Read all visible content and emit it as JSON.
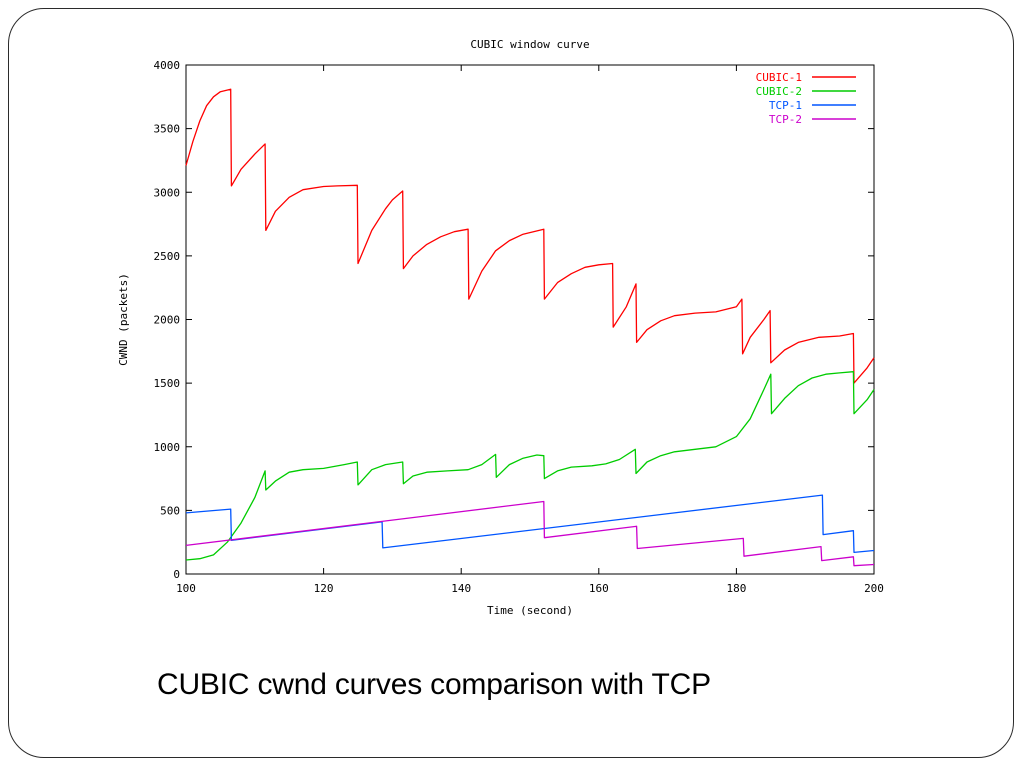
{
  "slide": {
    "caption": "CUBIC cwnd curves comparison with TCP"
  },
  "chart_data": {
    "type": "line",
    "title": "CUBIC window curve",
    "xlabel": "Time (second)",
    "ylabel": "CWND (packets)",
    "xlim": [
      100,
      200
    ],
    "ylim": [
      0,
      4000
    ],
    "xticks": [
      100,
      120,
      140,
      160,
      180,
      200
    ],
    "yticks": [
      0,
      500,
      1000,
      1500,
      2000,
      2500,
      3000,
      3500,
      4000
    ],
    "grid": false,
    "legend_position": "top-right",
    "series": [
      {
        "name": "CUBIC-1",
        "color": "#ff0000",
        "points": [
          [
            100,
            3210
          ],
          [
            101,
            3400
          ],
          [
            102,
            3560
          ],
          [
            103,
            3680
          ],
          [
            104,
            3750
          ],
          [
            105,
            3790
          ],
          [
            106.5,
            3810
          ],
          [
            106.6,
            3050
          ],
          [
            108,
            3180
          ],
          [
            110,
            3300
          ],
          [
            111.5,
            3380
          ],
          [
            111.6,
            2700
          ],
          [
            113,
            2850
          ],
          [
            115,
            2960
          ],
          [
            117,
            3020
          ],
          [
            120,
            3045
          ],
          [
            122,
            3050
          ],
          [
            124.9,
            3055
          ],
          [
            125,
            2440
          ],
          [
            127,
            2700
          ],
          [
            129,
            2870
          ],
          [
            130,
            2940
          ],
          [
            131.5,
            3010
          ],
          [
            131.6,
            2400
          ],
          [
            133,
            2500
          ],
          [
            135,
            2590
          ],
          [
            137,
            2650
          ],
          [
            139,
            2690
          ],
          [
            141,
            2710
          ],
          [
            141.1,
            2160
          ],
          [
            143,
            2380
          ],
          [
            145,
            2540
          ],
          [
            147,
            2620
          ],
          [
            149,
            2670
          ],
          [
            152,
            2710
          ],
          [
            152.1,
            2160
          ],
          [
            154,
            2290
          ],
          [
            156,
            2360
          ],
          [
            158,
            2410
          ],
          [
            160,
            2430
          ],
          [
            162,
            2440
          ],
          [
            162.1,
            1940
          ],
          [
            164,
            2100
          ],
          [
            165.4,
            2280
          ],
          [
            165.5,
            1820
          ],
          [
            167,
            1920
          ],
          [
            169,
            1990
          ],
          [
            171,
            2030
          ],
          [
            174,
            2050
          ],
          [
            177,
            2060
          ],
          [
            180,
            2100
          ],
          [
            180.8,
            2160
          ],
          [
            180.9,
            1730
          ],
          [
            182,
            1860
          ],
          [
            184,
            2000
          ],
          [
            184.9,
            2070
          ],
          [
            185,
            1660
          ],
          [
            187,
            1760
          ],
          [
            189,
            1820
          ],
          [
            192,
            1860
          ],
          [
            195,
            1870
          ],
          [
            197,
            1890
          ],
          [
            197.1,
            1500
          ],
          [
            199,
            1620
          ],
          [
            200,
            1700
          ]
        ]
      },
      {
        "name": "CUBIC-2",
        "color": "#00cc00",
        "points": [
          [
            100,
            110
          ],
          [
            102,
            120
          ],
          [
            104,
            150
          ],
          [
            106,
            250
          ],
          [
            108,
            400
          ],
          [
            110,
            600
          ],
          [
            111.5,
            810
          ],
          [
            111.6,
            660
          ],
          [
            113,
            730
          ],
          [
            115,
            800
          ],
          [
            117,
            820
          ],
          [
            120,
            830
          ],
          [
            123,
            860
          ],
          [
            124.9,
            880
          ],
          [
            125,
            700
          ],
          [
            127,
            820
          ],
          [
            129,
            860
          ],
          [
            131.5,
            880
          ],
          [
            131.6,
            710
          ],
          [
            133,
            770
          ],
          [
            135,
            800
          ],
          [
            138,
            810
          ],
          [
            141,
            820
          ],
          [
            143,
            860
          ],
          [
            145,
            940
          ],
          [
            145.1,
            760
          ],
          [
            147,
            860
          ],
          [
            149,
            910
          ],
          [
            151,
            935
          ],
          [
            152,
            930
          ],
          [
            152.1,
            750
          ],
          [
            154,
            810
          ],
          [
            156,
            840
          ],
          [
            159,
            850
          ],
          [
            161,
            865
          ],
          [
            163,
            900
          ],
          [
            165.3,
            980
          ],
          [
            165.4,
            790
          ],
          [
            167,
            880
          ],
          [
            169,
            930
          ],
          [
            171,
            960
          ],
          [
            174,
            980
          ],
          [
            177,
            1000
          ],
          [
            180,
            1080
          ],
          [
            182,
            1220
          ],
          [
            184,
            1450
          ],
          [
            185,
            1570
          ],
          [
            185.1,
            1260
          ],
          [
            187,
            1380
          ],
          [
            189,
            1480
          ],
          [
            191,
            1540
          ],
          [
            193,
            1570
          ],
          [
            195,
            1580
          ],
          [
            197,
            1590
          ],
          [
            197.1,
            1260
          ],
          [
            199,
            1370
          ],
          [
            200,
            1450
          ]
        ]
      },
      {
        "name": "TCP-1",
        "color": "#0055ff",
        "points": [
          [
            100,
            480
          ],
          [
            106.5,
            510
          ],
          [
            106.6,
            265
          ],
          [
            128.5,
            410
          ],
          [
            128.6,
            205
          ],
          [
            192.5,
            620
          ],
          [
            192.6,
            310
          ],
          [
            197,
            340
          ],
          [
            197.1,
            170
          ],
          [
            200,
            185
          ]
        ]
      },
      {
        "name": "TCP-2",
        "color": "#cc00cc",
        "points": [
          [
            100,
            225
          ],
          [
            152,
            570
          ],
          [
            152.1,
            285
          ],
          [
            165.5,
            375
          ],
          [
            165.6,
            200
          ],
          [
            181,
            280
          ],
          [
            181.1,
            140
          ],
          [
            192.3,
            215
          ],
          [
            192.4,
            105
          ],
          [
            197,
            135
          ],
          [
            197.1,
            65
          ],
          [
            200,
            75
          ]
        ]
      }
    ]
  }
}
